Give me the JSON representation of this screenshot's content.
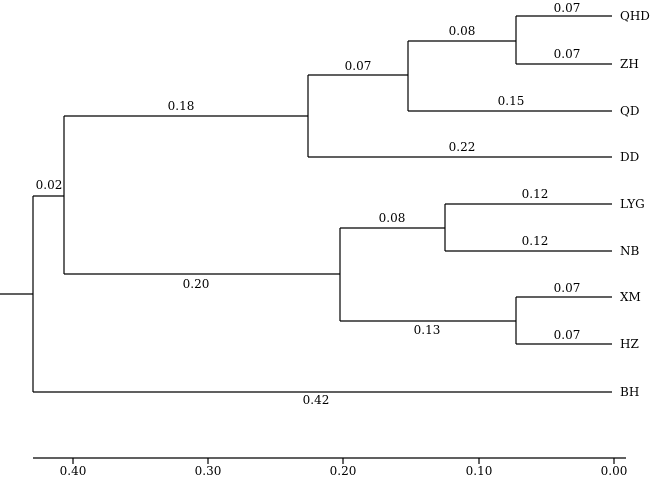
{
  "tree": {
    "branches": [
      {
        "name": "root-BH",
        "label": "0.42"
      },
      {
        "name": "root-ingroup",
        "label": "0.02"
      },
      {
        "name": "north-clade",
        "label": "0.18"
      },
      {
        "name": "qhd-zh-qd",
        "label": "0.07"
      },
      {
        "name": "qhd-zh",
        "label": "0.08"
      },
      {
        "name": "QHD",
        "label": "0.07"
      },
      {
        "name": "ZH",
        "label": "0.07"
      },
      {
        "name": "QD",
        "label": "0.15"
      },
      {
        "name": "DD",
        "label": "0.22"
      },
      {
        "name": "south-clade",
        "label": "0.20"
      },
      {
        "name": "lyg-nb",
        "label": "0.08"
      },
      {
        "name": "LYG",
        "label": "0.12"
      },
      {
        "name": "NB",
        "label": "0.12"
      },
      {
        "name": "xm-hz",
        "label": "0.13"
      },
      {
        "name": "XM",
        "label": "0.07"
      },
      {
        "name": "HZ",
        "label": "0.07"
      }
    ],
    "leaves": [
      "QHD",
      "ZH",
      "QD",
      "DD",
      "LYG",
      "NB",
      "XM",
      "HZ",
      "BH"
    ]
  },
  "axis": {
    "ticks": [
      "0.40",
      "0.30",
      "0.20",
      "0.10",
      "0.00"
    ]
  }
}
